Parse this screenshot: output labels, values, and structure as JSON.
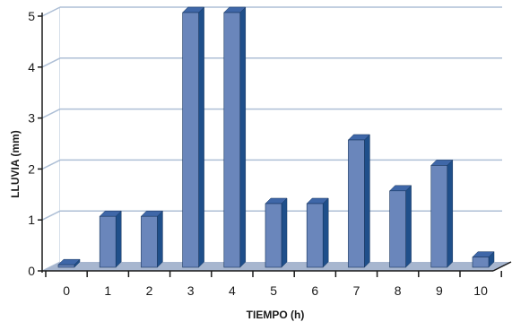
{
  "chart_data": {
    "type": "bar",
    "categories": [
      "0",
      "1",
      "2",
      "3",
      "4",
      "5",
      "6",
      "7",
      "8",
      "9",
      "10"
    ],
    "values": [
      0.05,
      1.0,
      1.0,
      5.0,
      5.0,
      1.25,
      1.25,
      2.5,
      1.5,
      2.0,
      0.2
    ],
    "title": "",
    "xlabel": "TIEMPO (h)",
    "ylabel": "LLUVIA (mm)",
    "ylim": [
      0,
      5
    ],
    "yticks": [
      "0",
      "1",
      "2",
      "3",
      "4",
      "5"
    ],
    "grid": true,
    "style": "3d",
    "colors": {
      "bar_front": "#6a86bb",
      "bar_side": "#1f4f8a",
      "bar_top": "#3f67a8",
      "floor": "#a7b6cf",
      "gridline": "#aebfd6",
      "axis": "#1a1a1a"
    }
  }
}
